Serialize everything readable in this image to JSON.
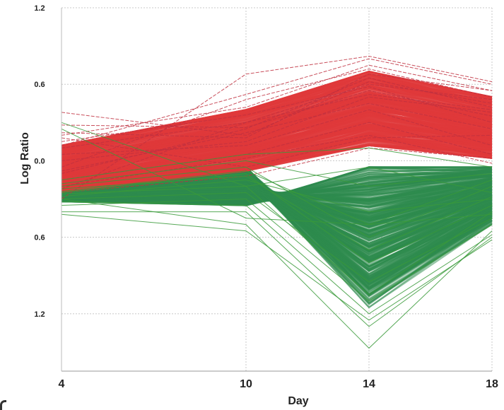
{
  "chart_data": {
    "type": "line",
    "title": "",
    "xlabel": "Day",
    "ylabel": "Log Ratio",
    "x": [
      4,
      10,
      14,
      18
    ],
    "xticks": [
      "4",
      "10",
      "14",
      "18"
    ],
    "yticks": [
      {
        "value": 1.2,
        "label": "1.2"
      },
      {
        "value": 0.6,
        "label": "0.6"
      },
      {
        "value": 0.0,
        "label": "0.0"
      },
      {
        "value": -0.6,
        "label": "0.6"
      },
      {
        "value": -1.2,
        "label": "1.2"
      }
    ],
    "xlim": [
      4,
      18
    ],
    "ylim": [
      -1.65,
      1.2
    ],
    "grid": true,
    "legend": "none",
    "colors": {
      "up": "#e0393b",
      "down": "#2e8b4e",
      "up_outline": "#c03040",
      "down_outline": "#3a9a3a",
      "grid": "#c8c8c8"
    },
    "series": [
      {
        "group": "up",
        "values": [
          0.12,
          0.52,
          0.8,
          0.6
        ]
      },
      {
        "group": "up",
        "values": [
          -0.3,
          0.68,
          0.82,
          0.62
        ]
      },
      {
        "group": "up",
        "values": [
          0.2,
          0.42,
          0.75,
          0.55
        ]
      },
      {
        "group": "up",
        "values": [
          -0.05,
          0.48,
          0.72,
          0.5
        ]
      },
      {
        "group": "up",
        "values": [
          0.38,
          0.2,
          0.62,
          0.45
        ]
      },
      {
        "group": "up",
        "values": [
          0.28,
          0.26,
          0.55,
          0.35
        ]
      },
      {
        "group": "up",
        "values": [
          0.1,
          0.3,
          0.6,
          0.48
        ]
      },
      {
        "group": "up",
        "values": [
          -0.22,
          0.3,
          0.52,
          0.4
        ]
      },
      {
        "group": "up",
        "values": [
          0.15,
          0.36,
          0.58,
          0.3
        ]
      },
      {
        "group": "up",
        "values": [
          -0.08,
          0.22,
          0.45,
          0.25
        ]
      },
      {
        "group": "up",
        "values": [
          0.05,
          0.12,
          0.4,
          0.12
        ]
      },
      {
        "group": "up",
        "values": [
          -0.15,
          0.05,
          0.3,
          0.05
        ]
      },
      {
        "group": "up",
        "values": [
          0.18,
          -0.05,
          0.18,
          0.2
        ]
      },
      {
        "group": "up",
        "values": [
          -0.2,
          0.02,
          0.2,
          -0.02
        ]
      },
      {
        "group": "up",
        "values": [
          0.0,
          0.15,
          0.5,
          0.38
        ]
      },
      {
        "group": "up",
        "values": [
          -0.25,
          -0.12,
          0.1,
          0.02
        ]
      },
      {
        "group": "up",
        "values": [
          0.22,
          0.18,
          0.68,
          0.55
        ]
      },
      {
        "group": "up",
        "values": [
          -0.1,
          0.25,
          0.65,
          0.42
        ]
      },
      {
        "group": "down",
        "values": [
          0.3,
          -0.2,
          -0.05,
          -0.25
        ]
      },
      {
        "group": "down",
        "values": [
          0.25,
          -0.45,
          -0.5,
          -0.42
        ]
      },
      {
        "group": "down",
        "values": [
          -0.3,
          -0.5,
          -1.47,
          -0.55
        ]
      },
      {
        "group": "down",
        "values": [
          -0.42,
          -0.55,
          -1.25,
          -0.62
        ]
      },
      {
        "group": "down",
        "values": [
          -0.35,
          -0.3,
          -1.1,
          -0.5
        ]
      },
      {
        "group": "down",
        "values": [
          -0.25,
          -0.1,
          -0.8,
          -0.35
        ]
      },
      {
        "group": "down",
        "values": [
          -0.3,
          -0.25,
          -0.95,
          -0.45
        ]
      },
      {
        "group": "down",
        "values": [
          -0.2,
          -0.05,
          -0.6,
          -0.2
        ]
      },
      {
        "group": "down",
        "values": [
          -0.28,
          -0.15,
          -0.4,
          -0.3
        ]
      },
      {
        "group": "down",
        "values": [
          -0.18,
          0.0,
          -0.2,
          -0.1
        ]
      },
      {
        "group": "down",
        "values": [
          -0.32,
          -0.35,
          -1.2,
          -0.58
        ]
      },
      {
        "group": "down",
        "values": [
          -0.22,
          -0.12,
          -0.7,
          -0.28
        ]
      },
      {
        "group": "down",
        "values": [
          -0.26,
          -0.2,
          -1.05,
          -0.4
        ]
      },
      {
        "group": "down",
        "values": [
          -0.15,
          0.05,
          0.1,
          -0.05
        ]
      },
      {
        "group": "down",
        "values": [
          -0.4,
          -0.4,
          -1.3,
          -0.6
        ]
      },
      {
        "group": "down",
        "values": [
          -0.24,
          -0.08,
          -0.5,
          -0.15
        ]
      }
    ]
  }
}
